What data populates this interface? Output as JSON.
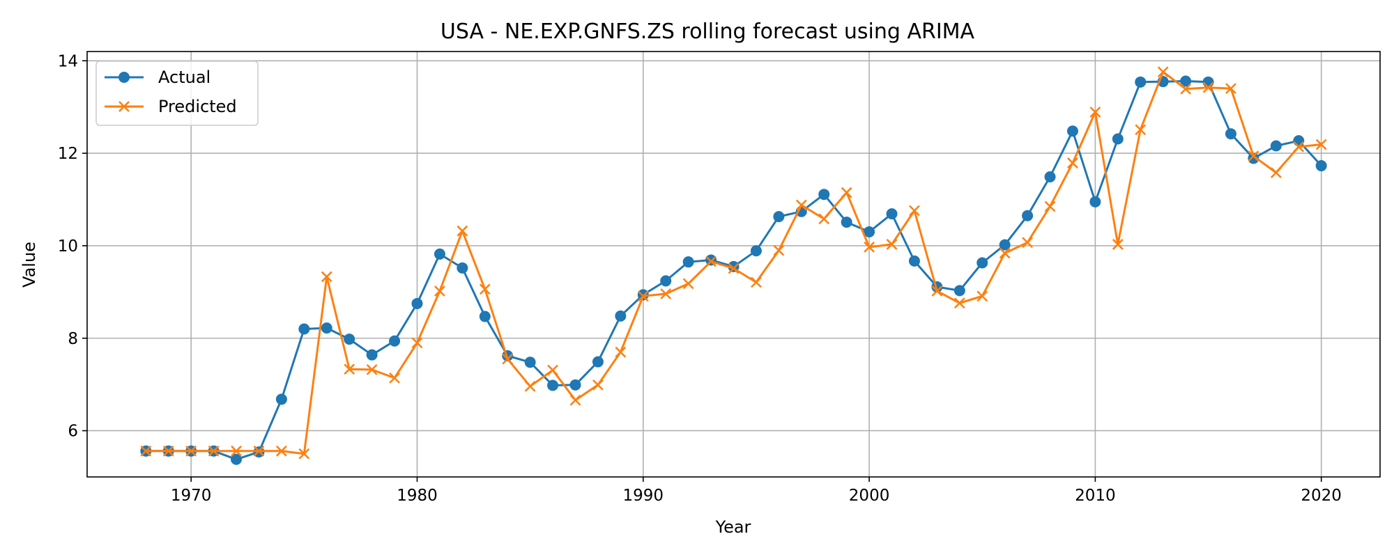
{
  "chart_data": {
    "type": "line",
    "title": "USA - NE.EXP.GNFS.ZS rolling forecast using ARIMA",
    "xlabel": "Year",
    "ylabel": "Value",
    "xlim": [
      1965.4,
      2022.6
    ],
    "ylim": [
      5.0,
      14.2
    ],
    "xticks": [
      1970,
      1980,
      1990,
      2000,
      2010,
      2020
    ],
    "yticks": [
      6,
      8,
      10,
      12,
      14
    ],
    "grid": true,
    "legend_position": "top-left",
    "x": [
      1968,
      1969,
      1970,
      1971,
      1972,
      1973,
      1974,
      1975,
      1976,
      1977,
      1978,
      1979,
      1980,
      1981,
      1982,
      1983,
      1984,
      1985,
      1986,
      1987,
      1988,
      1989,
      1990,
      1991,
      1992,
      1993,
      1994,
      1995,
      1996,
      1997,
      1998,
      1999,
      2000,
      2001,
      2002,
      2003,
      2004,
      2005,
      2006,
      2007,
      2008,
      2009,
      2010,
      2011,
      2012,
      2013,
      2014,
      2015,
      2016,
      2017,
      2018,
      2019,
      2020
    ],
    "series": [
      {
        "name": "Actual",
        "color": "#1f77b4",
        "marker": "circle",
        "values": [
          5.56,
          5.56,
          5.56,
          5.56,
          5.38,
          5.54,
          6.68,
          8.2,
          8.22,
          7.98,
          7.64,
          7.94,
          8.75,
          9.82,
          9.52,
          8.47,
          7.62,
          7.48,
          6.98,
          6.99,
          7.49,
          8.48,
          8.94,
          9.24,
          9.65,
          9.69,
          9.55,
          9.89,
          10.63,
          10.74,
          11.11,
          10.51,
          10.3,
          10.69,
          9.67,
          9.11,
          9.03,
          9.63,
          10.02,
          10.65,
          11.49,
          12.48,
          10.95,
          12.31,
          13.54,
          13.55,
          13.56,
          13.54,
          12.42,
          11.89,
          12.16,
          12.27,
          11.73
        ]
      },
      {
        "name": "Predicted",
        "color": "#ff7f0e",
        "marker": "x",
        "values": [
          5.56,
          5.56,
          5.56,
          5.56,
          5.56,
          5.56,
          5.56,
          5.5,
          9.33,
          7.33,
          7.32,
          7.14,
          7.9,
          9.02,
          10.32,
          9.06,
          7.55,
          6.96,
          7.31,
          6.66,
          6.99,
          7.7,
          8.91,
          8.96,
          9.18,
          9.66,
          9.51,
          9.21,
          9.9,
          10.88,
          10.58,
          11.15,
          9.97,
          10.03,
          10.76,
          9.02,
          8.76,
          8.91,
          9.84,
          10.07,
          10.85,
          11.79,
          12.89,
          10.03,
          12.51,
          13.76,
          13.39,
          13.42,
          13.4,
          11.94,
          11.58,
          12.14,
          12.19
        ]
      }
    ]
  }
}
